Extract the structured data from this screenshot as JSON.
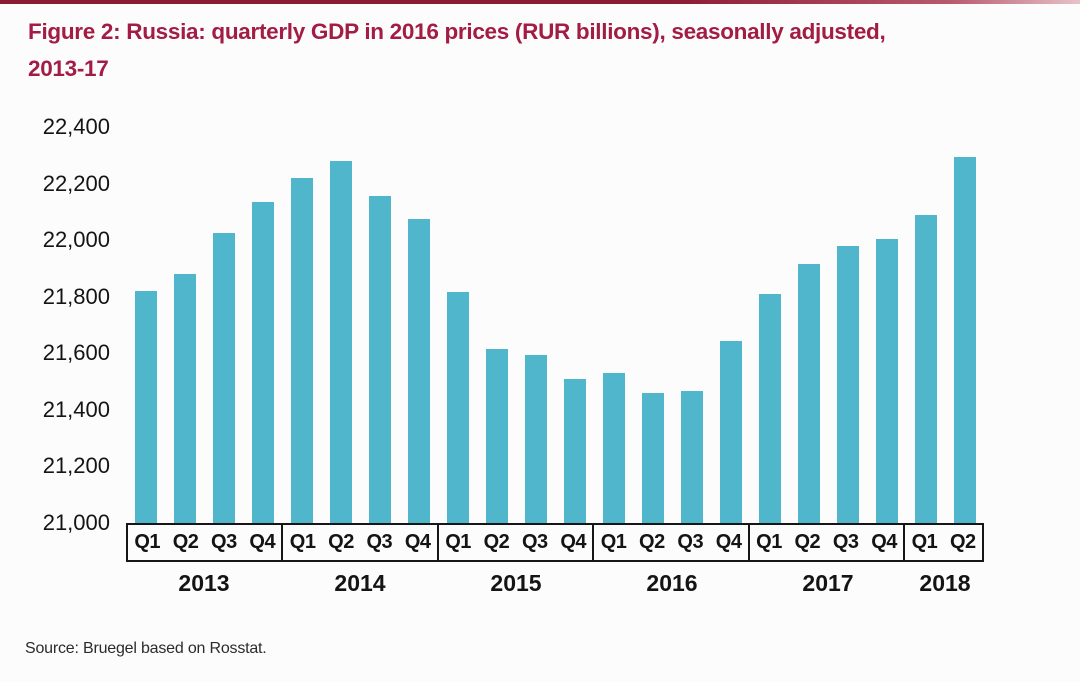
{
  "title": {
    "line1": "Figure 2: Russia: quarterly GDP in 2016 prices (RUR billions), seasonally adjusted,",
    "line2": "2013-17"
  },
  "source": "Source: Bruegel based on Rosstat.",
  "colors": {
    "bar": "#4fb6cb",
    "title_text": "#a21c45",
    "top_rule": "#8b1a33",
    "axis_text": "#141414"
  },
  "chart_data": {
    "type": "bar",
    "title": "Figure 2: Russia: quarterly GDP in 2016 prices (RUR billions), seasonally adjusted, 2013-17",
    "xlabel": "",
    "ylabel": "",
    "ylim": [
      21000,
      22400
    ],
    "ytick_step": 200,
    "yticks": [
      "22,400",
      "22,200",
      "22,000",
      "21,800",
      "21,600",
      "21,400",
      "21,200",
      "21,000"
    ],
    "grid": false,
    "legend": false,
    "groups": [
      {
        "year": "2013",
        "quarters": [
          "Q1",
          "Q2",
          "Q3",
          "Q4"
        ],
        "values": [
          21820,
          21880,
          22025,
          22135
        ]
      },
      {
        "year": "2014",
        "quarters": [
          "Q1",
          "Q2",
          "Q3",
          "Q4"
        ],
        "values": [
          22220,
          22280,
          22155,
          22075
        ]
      },
      {
        "year": "2015",
        "quarters": [
          "Q1",
          "Q2",
          "Q3",
          "Q4"
        ],
        "values": [
          21815,
          21615,
          21595,
          21510
        ]
      },
      {
        "year": "2016",
        "quarters": [
          "Q1",
          "Q2",
          "Q3",
          "Q4"
        ],
        "values": [
          21530,
          21460,
          21465,
          21645
        ]
      },
      {
        "year": "2017",
        "quarters": [
          "Q1",
          "Q2",
          "Q3",
          "Q4"
        ],
        "values": [
          21810,
          21915,
          21980,
          22005
        ]
      },
      {
        "year": "2018",
        "quarters": [
          "Q1",
          "Q2"
        ],
        "values": [
          22090,
          22295
        ]
      }
    ]
  }
}
